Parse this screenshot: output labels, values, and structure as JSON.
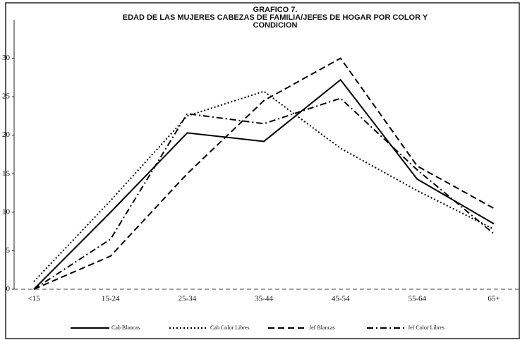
{
  "chart_data": {
    "type": "line",
    "title": [
      "GRAFICO 7.",
      "EDAD DE LAS MUJERES CABEZAS DE FAMILIA/JEFES DE HOGAR POR COLOR Y",
      "CONDICION"
    ],
    "categories": [
      "<15",
      "15-24",
      "25-34",
      "35-44",
      "45-54",
      "55-64",
      "65+"
    ],
    "series": [
      {
        "name": "Cab Blancas",
        "color": "#000000",
        "dash": "none",
        "values": [
          0,
          10,
          20.3,
          19.2,
          27.2,
          14.3,
          8.5
        ]
      },
      {
        "name": "Cab Color Libres",
        "color": "#000000",
        "dash": "2 3",
        "values": [
          1,
          11.5,
          22.5,
          25.7,
          18.3,
          12.8,
          7.8
        ]
      },
      {
        "name": "Jef Blancas",
        "color": "#000000",
        "dash": "9 5",
        "values": [
          0,
          4.3,
          15,
          24.5,
          30,
          16,
          10.5
        ]
      },
      {
        "name": "Jef Color Libres",
        "color": "#000000",
        "dash": "9 4 2 4",
        "values": [
          0,
          6.5,
          22.8,
          21.5,
          24.8,
          15.5,
          7.2
        ]
      }
    ],
    "ylim": [
      0,
      35
    ],
    "yticks": [
      0,
      5,
      10,
      15,
      20,
      25,
      30
    ],
    "grid": false,
    "legend": "bottom"
  }
}
